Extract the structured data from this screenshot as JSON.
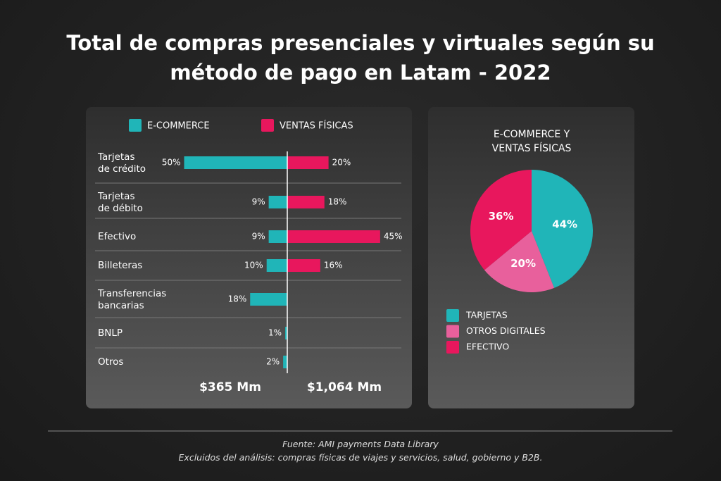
{
  "title": "Total de compras presenciales y virtuales según su método de pago en Latam - 2022",
  "chart_data": [
    {
      "type": "bar",
      "categories": [
        "Tarjetas de crédito",
        "Tarjetas de débito",
        "Efectivo",
        "Billeteras",
        "Transferencias bancarias",
        "BNLP",
        "Otros"
      ],
      "series": [
        {
          "name": "E-COMMERCE",
          "color": "#20b5b8",
          "total_label": "$365 Mm",
          "values": [
            50,
            9,
            9,
            10,
            18,
            1,
            2
          ],
          "value_labels": [
            "50%",
            "9%",
            "9%",
            "10%",
            "18%",
            "1%",
            "2%"
          ]
        },
        {
          "name": "VENTAS FÍSICAS",
          "color": "#e8175d",
          "total_label": "$1,064 Mm",
          "values": [
            20,
            18,
            45,
            16,
            null,
            null,
            null
          ],
          "value_labels": [
            "20%",
            "18%",
            "45%",
            "16%",
            null,
            null,
            null
          ]
        }
      ]
    },
    {
      "type": "pie",
      "title": "E-COMMERCE Y VENTAS FÍSICAS",
      "categories": [
        "TARJETAS",
        "OTROS DIGITALES",
        "EFECTIVO"
      ],
      "values": [
        44,
        20,
        36
      ],
      "value_labels": [
        "44%",
        "20%",
        "36%"
      ],
      "colors": [
        "#20b5b8",
        "#e8609c",
        "#e8175d"
      ]
    }
  ],
  "footer": {
    "source": "Fuente: AMI payments Data Library",
    "note": "Excluidos del análisis: compras físicas de viajes y servicios, salud, gobierno y B2B."
  }
}
